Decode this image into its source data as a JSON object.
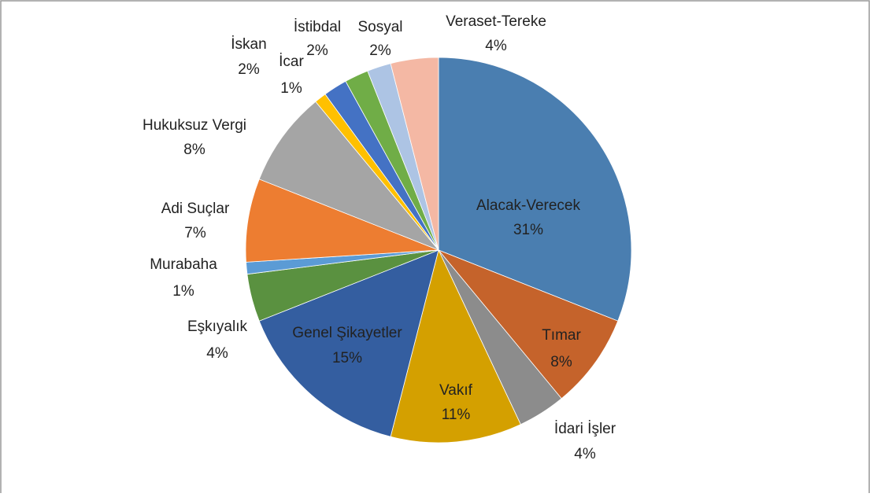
{
  "chart_data": {
    "type": "pie",
    "categories": [
      "Alacak-Verecek",
      "Tımar",
      "İdari İşler",
      "Vakıf",
      "Genel Şikayetler",
      "Eşkıyalık",
      "Murabaha",
      "Adi Suçlar",
      "Hukuksuz Vergi",
      "İcar",
      "İskan",
      "İstibdal",
      "Sosyal",
      "Veraset-Tereke"
    ],
    "values": [
      31,
      8,
      4,
      11,
      15,
      4,
      1,
      7,
      8,
      1,
      2,
      2,
      2,
      4
    ],
    "value_labels": [
      "31%",
      "8%",
      "4%",
      "11%",
      "15%",
      "4%",
      "1%",
      "7%",
      "8%",
      "1%",
      "2%",
      "2%",
      "2%",
      "4%"
    ],
    "colors": [
      "#4a7eb0",
      "#c5632b",
      "#8c8c8c",
      "#d4a000",
      "#345ea0",
      "#5a9140",
      "#5b9bd5",
      "#ed7d31",
      "#a5a5a5",
      "#ffc000",
      "#4472c4",
      "#70ad47",
      "#adc4e4",
      "#f4b8a4"
    ]
  }
}
